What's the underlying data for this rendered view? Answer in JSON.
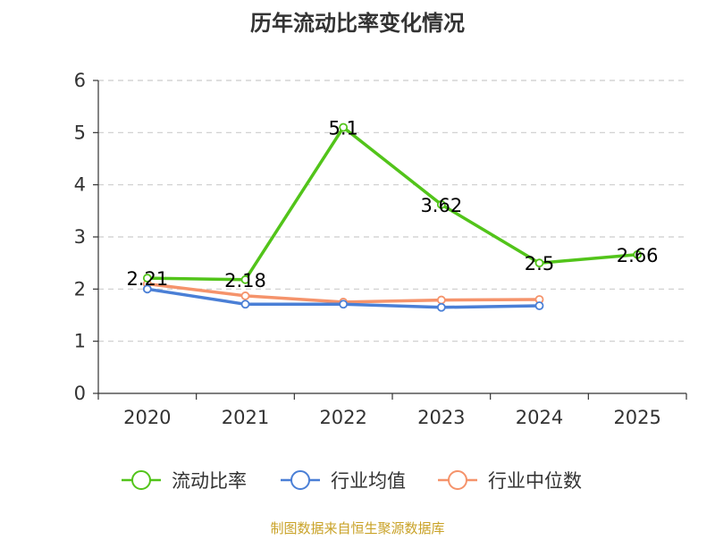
{
  "chart_data": {
    "type": "line",
    "title": "历年流动比率变化情况",
    "categories": [
      "2020",
      "2021",
      "2022",
      "2023",
      "2024",
      "2025"
    ],
    "y_ticks": [
      "0",
      "1",
      "2",
      "3",
      "4",
      "5",
      "6"
    ],
    "ylim": [
      0,
      6
    ],
    "grid": true,
    "legend_position": "bottom",
    "series": [
      {
        "name": "流动比率",
        "color": "#52c41a",
        "values": [
          2.21,
          2.18,
          5.1,
          3.62,
          2.5,
          2.66
        ],
        "labels": [
          "2.21",
          "2.18",
          "5.1",
          "3.62",
          "2.5",
          "2.66"
        ]
      },
      {
        "name": "行业均值",
        "color": "#4a7fd6",
        "values": [
          2.0,
          1.71,
          1.71,
          1.65,
          1.68,
          null
        ]
      },
      {
        "name": "行业中位数",
        "color": "#f5936b",
        "values": [
          2.1,
          1.87,
          1.75,
          1.79,
          1.8,
          null
        ]
      }
    ]
  },
  "footer": {
    "source": "制图数据来自恒生聚源数据库",
    "source_color": "#c9a227"
  }
}
